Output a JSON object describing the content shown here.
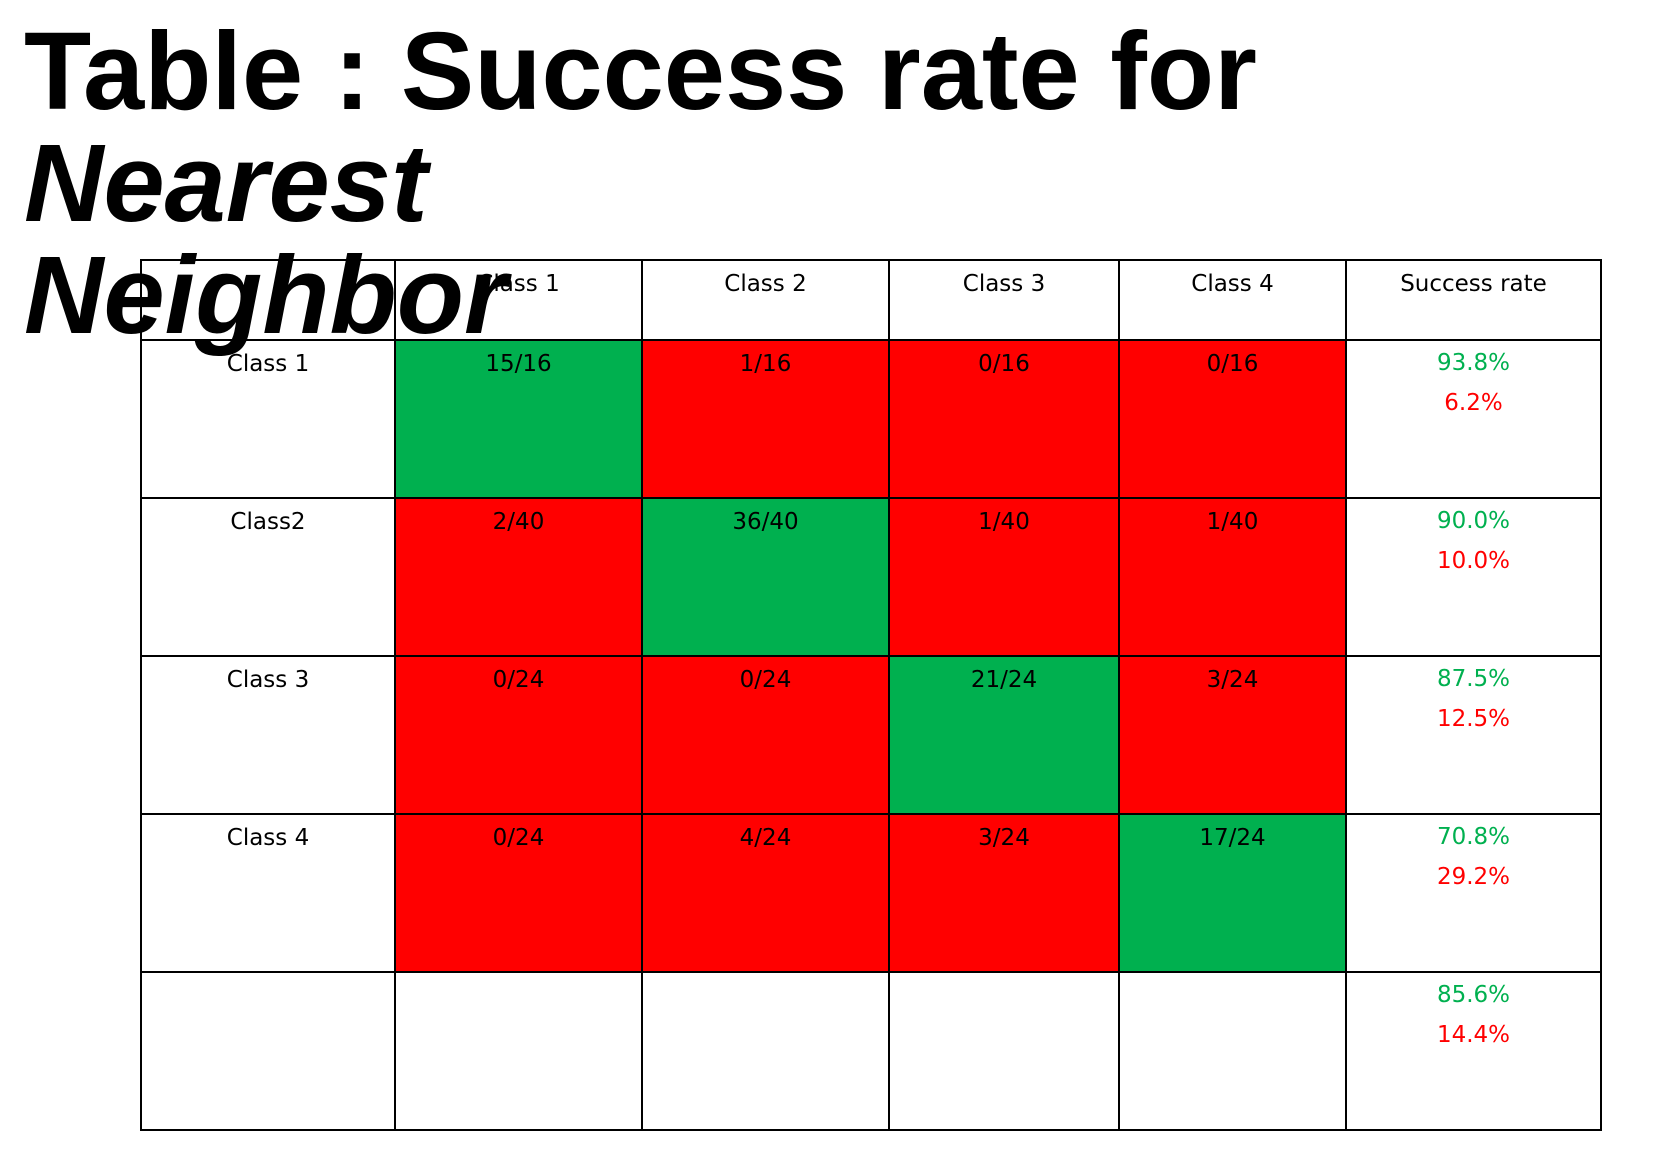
{
  "title": {
    "plain": "Table : Success rate for ",
    "emphasis_1": "Nearest",
    "emphasis_2": "Neighbor"
  },
  "colors": {
    "correct": "#00b04f",
    "incorrect": "#ff0000"
  },
  "table": {
    "headers": [
      "",
      "Class 1",
      "Class 2",
      "Class 3",
      "Class 4",
      "Success rate"
    ],
    "rows": [
      {
        "label": "Class 1",
        "cells": [
          "15/16",
          "1/16",
          "0/16",
          "0/16"
        ],
        "success": "93.8%",
        "error": "6.2%"
      },
      {
        "label": "Class2",
        "cells": [
          "2/40",
          "36/40",
          "1/40",
          "1/40"
        ],
        "success": "90.0%",
        "error": "10.0%"
      },
      {
        "label": "Class 3",
        "cells": [
          "0/24",
          "0/24",
          "21/24",
          "3/24"
        ],
        "success": "87.5%",
        "error": "12.5%"
      },
      {
        "label": "Class 4",
        "cells": [
          "0/24",
          "4/24",
          "3/24",
          "17/24"
        ],
        "success": "70.8%",
        "error": "29.2%"
      }
    ],
    "total": {
      "success": "85.6%",
      "error": "14.4%"
    }
  }
}
